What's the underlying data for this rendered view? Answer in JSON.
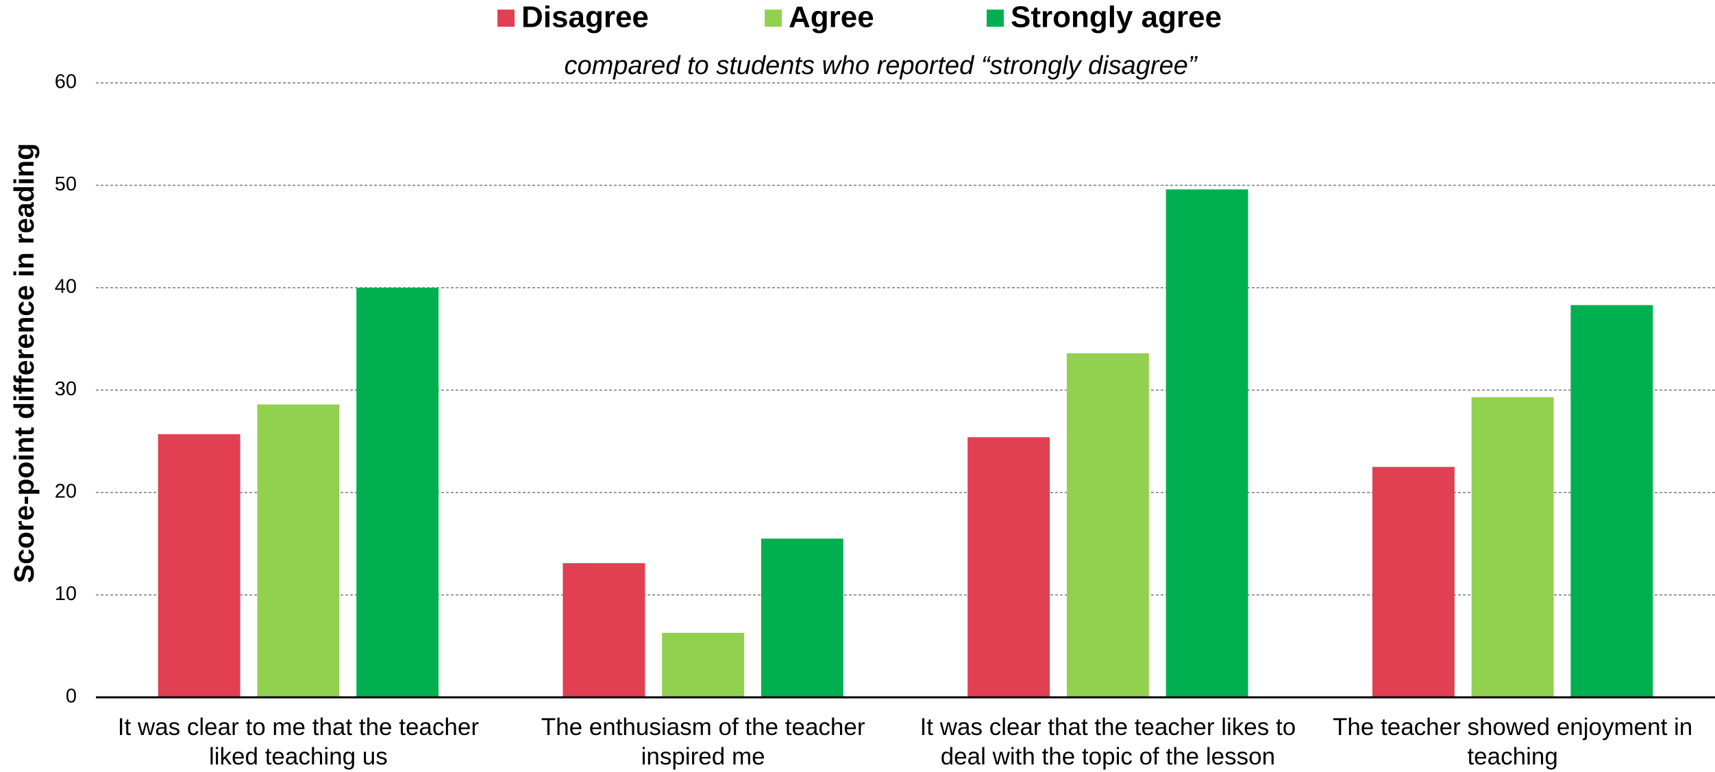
{
  "chart_data": {
    "type": "bar",
    "subtitle": "compared to students who reported “strongly disagree”",
    "y_label": "Score-point difference in reading",
    "categories": [
      "It was clear to me that the teacher liked teaching us",
      "The enthusiasm of the teacher inspired me",
      "It was clear that the teacher likes to deal with the topic of the lesson",
      "The teacher showed enjoyment in teaching"
    ],
    "series": [
      {
        "name": "Disagree",
        "color": "#e04052",
        "values": [
          25.7,
          13.1,
          25.4,
          22.5
        ]
      },
      {
        "name": "Agree",
        "color": "#92d050",
        "values": [
          28.6,
          6.3,
          33.6,
          29.3
        ]
      },
      {
        "name": "Strongly agree",
        "color": "#00b050",
        "values": [
          40.0,
          15.5,
          49.6,
          38.3
        ]
      }
    ],
    "ylim": [
      0,
      60
    ],
    "yticks": [
      0,
      10,
      20,
      30,
      40,
      50,
      60
    ],
    "grid": true,
    "legend": "top"
  }
}
